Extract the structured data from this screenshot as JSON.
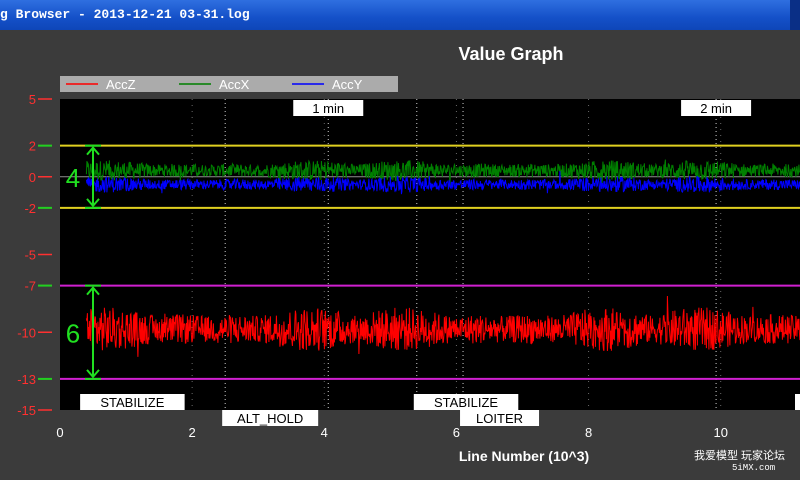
{
  "window": {
    "title": "g Browser - 2013-12-21 03-31.log"
  },
  "chart_data": {
    "type": "line",
    "title": "Value Graph",
    "xlabel": "Line Number (10^3)",
    "ylabel": "",
    "xlim": [
      0,
      11.2
    ],
    "ylim": [
      -15,
      5
    ],
    "x_ticks": [
      "0",
      "2",
      "4",
      "6",
      "8",
      "10"
    ],
    "y_ticks": [
      "5",
      "2",
      "0",
      "-2",
      "-5",
      "-7",
      "-10",
      "-13",
      "-15"
    ],
    "grid": true,
    "legend_position": "top-left",
    "series": [
      {
        "name": "AccZ",
        "color": "#ff0000",
        "baseline": -9.8,
        "amplitude": 1.5,
        "x_range": [
          0.4,
          11.2
        ]
      },
      {
        "name": "AccX",
        "color": "#008000",
        "baseline": 0.4,
        "amplitude": 0.7,
        "x_range": [
          0.4,
          11.2
        ]
      },
      {
        "name": "AccY",
        "color": "#0000ff",
        "baseline": -0.5,
        "amplitude": 0.55,
        "x_range": [
          0.4,
          11.2
        ]
      }
    ],
    "reference_lines": [
      {
        "y": 2,
        "color": "#e0d020"
      },
      {
        "y": -2,
        "color": "#e0d020"
      },
      {
        "y": -7,
        "color": "#d020d0"
      },
      {
        "y": -13,
        "color": "#d020d0"
      }
    ],
    "range_annotations": [
      {
        "label": "4",
        "from": 2,
        "to": -2
      },
      {
        "label": "6",
        "from": -7,
        "to": -13
      }
    ],
    "time_markers": [
      {
        "label": "1 min",
        "x": 4.06
      },
      {
        "label": "2 min",
        "x": 9.93
      }
    ],
    "mode_labels": [
      {
        "label": "STABILIZE",
        "x": 0.35,
        "row": 1
      },
      {
        "label": "ALT_HOLD",
        "x": 2.5,
        "row": 2
      },
      {
        "label": "STABILIZE",
        "x": 5.4,
        "row": 1
      },
      {
        "label": "LOITER",
        "x": 6.1,
        "row": 2
      }
    ],
    "mode_lines": [
      2.5,
      4.06,
      5.4,
      6.1,
      9.93
    ]
  },
  "watermark": {
    "line1": "我爱模型 玩家论坛",
    "line2": "5iMX.com"
  }
}
